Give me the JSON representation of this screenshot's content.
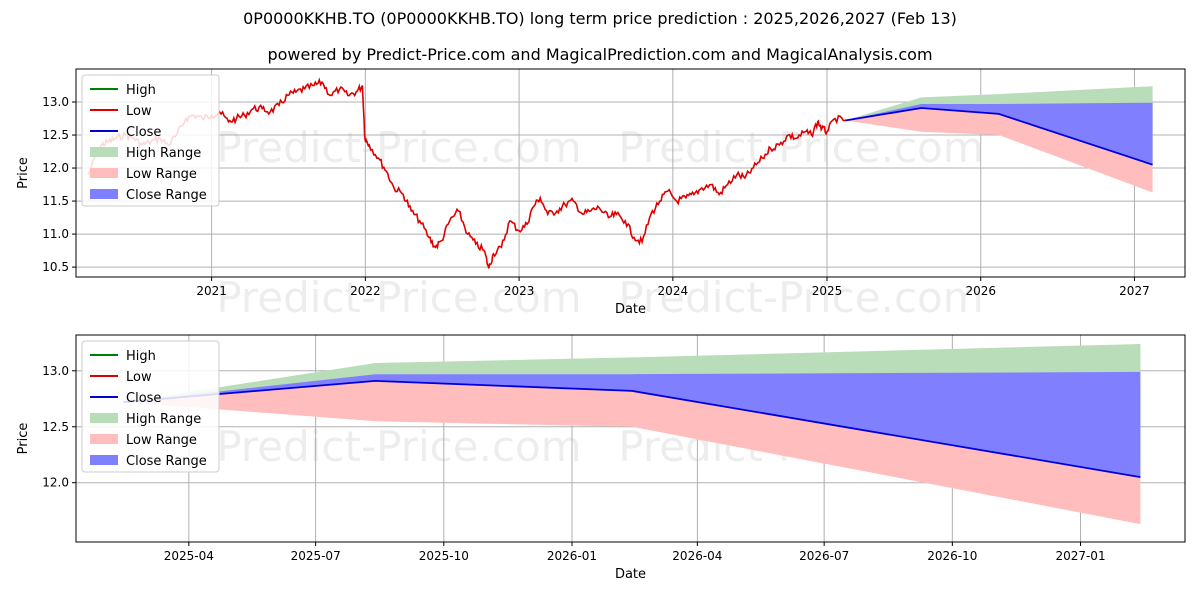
{
  "header": {
    "title": "0P0000KKHB.TO (0P0000KKHB.TO) long term price prediction : 2025,2026,2027 (Feb 13)",
    "subtitle": "powered by Predict-Price.com and MagicalPrediction.com and MagicalAnalysis.com"
  },
  "watermark": "Predict-Price.com",
  "colors": {
    "high": "#008000",
    "low": "#dd0000",
    "close": "#0000dd",
    "high_range": "#b9dcb9",
    "low_range": "#ffbdbd",
    "close_range": "#8080ff",
    "grid": "#b0b0b0"
  },
  "legend": {
    "position": "top-left",
    "items": [
      "High",
      "Low",
      "Close",
      "High Range",
      "Low Range",
      "Close Range"
    ]
  },
  "chart_data": [
    {
      "type": "line",
      "xlabel": "Date",
      "ylabel": "Price",
      "x_ticks": [
        "2021",
        "2022",
        "2023",
        "2024",
        "2025",
        "2026",
        "2027"
      ],
      "y_ticks": [
        "10.5",
        "11.0",
        "11.5",
        "12.0",
        "12.5",
        "13.0"
      ],
      "xlim": [
        "2020-02-14",
        "2027-05-01"
      ],
      "ylim": [
        10.35,
        13.5
      ],
      "grid": true,
      "history_low": {
        "x": [
          "2020-03-15",
          "2020-04-01",
          "2020-04-15",
          "2020-05-01",
          "2020-05-20",
          "2020-06-10",
          "2020-07-01",
          "2020-07-20",
          "2020-08-10",
          "2020-09-01",
          "2020-09-20",
          "2020-10-10",
          "2020-11-01",
          "2020-11-20",
          "2020-12-10",
          "2021-01-01",
          "2021-01-20",
          "2021-02-10",
          "2021-03-01",
          "2021-03-20",
          "2021-04-10",
          "2021-05-01",
          "2021-05-20",
          "2021-06-10",
          "2021-07-01",
          "2021-07-20",
          "2021-08-10",
          "2021-09-01",
          "2021-09-20",
          "2021-10-10",
          "2021-11-01",
          "2021-11-20",
          "2021-12-10",
          "2021-12-25",
          "2021-12-31",
          "2022-01-10",
          "2022-02-01",
          "2022-02-20",
          "2022-03-10",
          "2022-04-01",
          "2022-04-20",
          "2022-05-10",
          "2022-06-01",
          "2022-06-16",
          "2022-07-01",
          "2022-07-20",
          "2022-08-10",
          "2022-09-01",
          "2022-09-20",
          "2022-10-10",
          "2022-10-21",
          "2022-11-01",
          "2022-11-20",
          "2022-12-10",
          "2023-01-01",
          "2023-01-20",
          "2023-02-02",
          "2023-02-20",
          "2023-03-10",
          "2023-04-01",
          "2023-04-20",
          "2023-05-10",
          "2023-06-01",
          "2023-06-20",
          "2023-07-10",
          "2023-08-01",
          "2023-08-20",
          "2023-09-10",
          "2023-10-01",
          "2023-10-20",
          "2023-11-10",
          "2023-12-01",
          "2023-12-20",
          "2024-01-10",
          "2024-02-01",
          "2024-02-20",
          "2024-03-10",
          "2024-04-01",
          "2024-04-20",
          "2024-05-10",
          "2024-06-01",
          "2024-06-20",
          "2024-07-10",
          "2024-08-01",
          "2024-08-20",
          "2024-09-10",
          "2024-10-01",
          "2024-10-20",
          "2024-11-10",
          "2024-11-25",
          "2024-12-10",
          "2024-12-20",
          "2025-01-01",
          "2025-01-20",
          "2025-02-13"
        ],
        "y": [
          11.9,
          12.2,
          12.35,
          12.4,
          12.45,
          12.5,
          12.45,
          12.35,
          12.4,
          12.45,
          12.35,
          12.5,
          12.75,
          12.8,
          12.75,
          12.8,
          12.85,
          12.7,
          12.75,
          12.8,
          12.9,
          12.9,
          12.85,
          12.95,
          13.1,
          13.15,
          13.2,
          13.25,
          13.3,
          13.1,
          13.2,
          13.1,
          13.15,
          13.25,
          12.45,
          12.35,
          12.15,
          11.95,
          11.7,
          11.6,
          11.35,
          11.2,
          10.95,
          10.8,
          10.9,
          11.2,
          11.35,
          11.0,
          10.85,
          10.75,
          10.48,
          10.7,
          10.8,
          11.2,
          11.05,
          11.15,
          11.4,
          11.55,
          11.3,
          11.35,
          11.45,
          11.5,
          11.3,
          11.35,
          11.4,
          11.25,
          11.3,
          11.2,
          10.95,
          10.88,
          11.3,
          11.5,
          11.65,
          11.5,
          11.55,
          11.6,
          11.7,
          11.75,
          11.6,
          11.75,
          11.9,
          11.85,
          12.0,
          12.15,
          12.3,
          12.35,
          12.5,
          12.45,
          12.55,
          12.5,
          12.7,
          12.6,
          12.55,
          12.75,
          12.72
        ]
      },
      "forecast": {
        "x": [
          "2025-02-13",
          "2025-08-13",
          "2026-02-13",
          "2027-02-13"
        ],
        "high": [
          12.72,
          13.07,
          13.12,
          13.24
        ],
        "low": [
          12.72,
          12.55,
          12.5,
          11.63
        ],
        "close_range_upper": [
          12.72,
          12.97,
          12.97,
          12.99
        ],
        "close": [
          12.72,
          12.91,
          12.82,
          12.05
        ]
      }
    },
    {
      "type": "line",
      "xlabel": "Date",
      "ylabel": "Price",
      "x_ticks": [
        "2025-04",
        "2025-07",
        "2025-10",
        "2026-01",
        "2026-04",
        "2026-07",
        "2026-10",
        "2027-01"
      ],
      "y_ticks": [
        "12.0",
        "12.5",
        "13.0"
      ],
      "xlim": [
        "2025-01-10",
        "2027-03-17"
      ],
      "ylim": [
        11.47,
        13.32
      ],
      "grid": true,
      "forecast": {
        "x": [
          "2025-02-13",
          "2025-08-13",
          "2026-02-13",
          "2027-02-13"
        ],
        "high": [
          12.72,
          13.07,
          13.12,
          13.24
        ],
        "low": [
          12.72,
          12.55,
          12.5,
          11.63
        ],
        "close_range_upper": [
          12.72,
          12.97,
          12.97,
          12.99
        ],
        "close": [
          12.72,
          12.91,
          12.82,
          12.05
        ]
      }
    }
  ]
}
